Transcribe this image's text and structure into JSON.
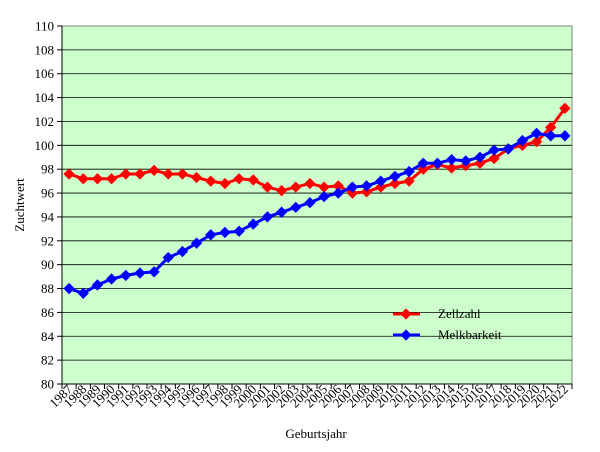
{
  "chart_data": {
    "type": "line",
    "xlabel": "Geburtsjahr",
    "ylabel": "Zuchtwert",
    "ylim": [
      80,
      110
    ],
    "y_ticks": [
      80,
      82,
      84,
      86,
      88,
      90,
      92,
      94,
      96,
      98,
      100,
      102,
      104,
      106,
      108,
      110
    ],
    "categories": [
      "1987",
      "1988",
      "1989",
      "1990",
      "1991",
      "1992",
      "1993",
      "1994",
      "1995",
      "1996",
      "1997",
      "1998",
      "1999",
      "2000",
      "2001",
      "2002",
      "2003",
      "2004",
      "2005",
      "2006",
      "2007",
      "2008",
      "2009",
      "2010",
      "2011",
      "2012",
      "2013",
      "2014",
      "2015",
      "2016",
      "2017",
      "2018",
      "2019",
      "2020",
      "2021",
      "2022"
    ],
    "grid": true,
    "legend_position": "bottom-right",
    "plot_background": "#ccffcc",
    "series": [
      {
        "name": "Zellzahl",
        "color": "#ff0000",
        "values": [
          97.6,
          97.2,
          97.2,
          97.2,
          97.6,
          97.6,
          97.9,
          97.6,
          97.6,
          97.3,
          97.0,
          96.8,
          97.2,
          97.1,
          96.5,
          96.2,
          96.5,
          96.8,
          96.5,
          96.6,
          96.0,
          96.1,
          96.5,
          96.8,
          97.0,
          98.0,
          98.4,
          98.1,
          98.3,
          98.5,
          98.9,
          99.7,
          100.0,
          100.3,
          101.5,
          103.1
        ]
      },
      {
        "name": "Melkbarkeit",
        "color": "#0000ff",
        "values": [
          88.0,
          87.6,
          88.3,
          88.8,
          89.1,
          89.3,
          89.4,
          90.6,
          91.1,
          91.8,
          92.5,
          92.7,
          92.8,
          93.4,
          94.0,
          94.4,
          94.8,
          95.2,
          95.7,
          96.0,
          96.5,
          96.6,
          97.0,
          97.4,
          97.8,
          98.5,
          98.5,
          98.8,
          98.7,
          99.0,
          99.6,
          99.7,
          100.4,
          101.0,
          100.8,
          100.8
        ]
      }
    ]
  }
}
